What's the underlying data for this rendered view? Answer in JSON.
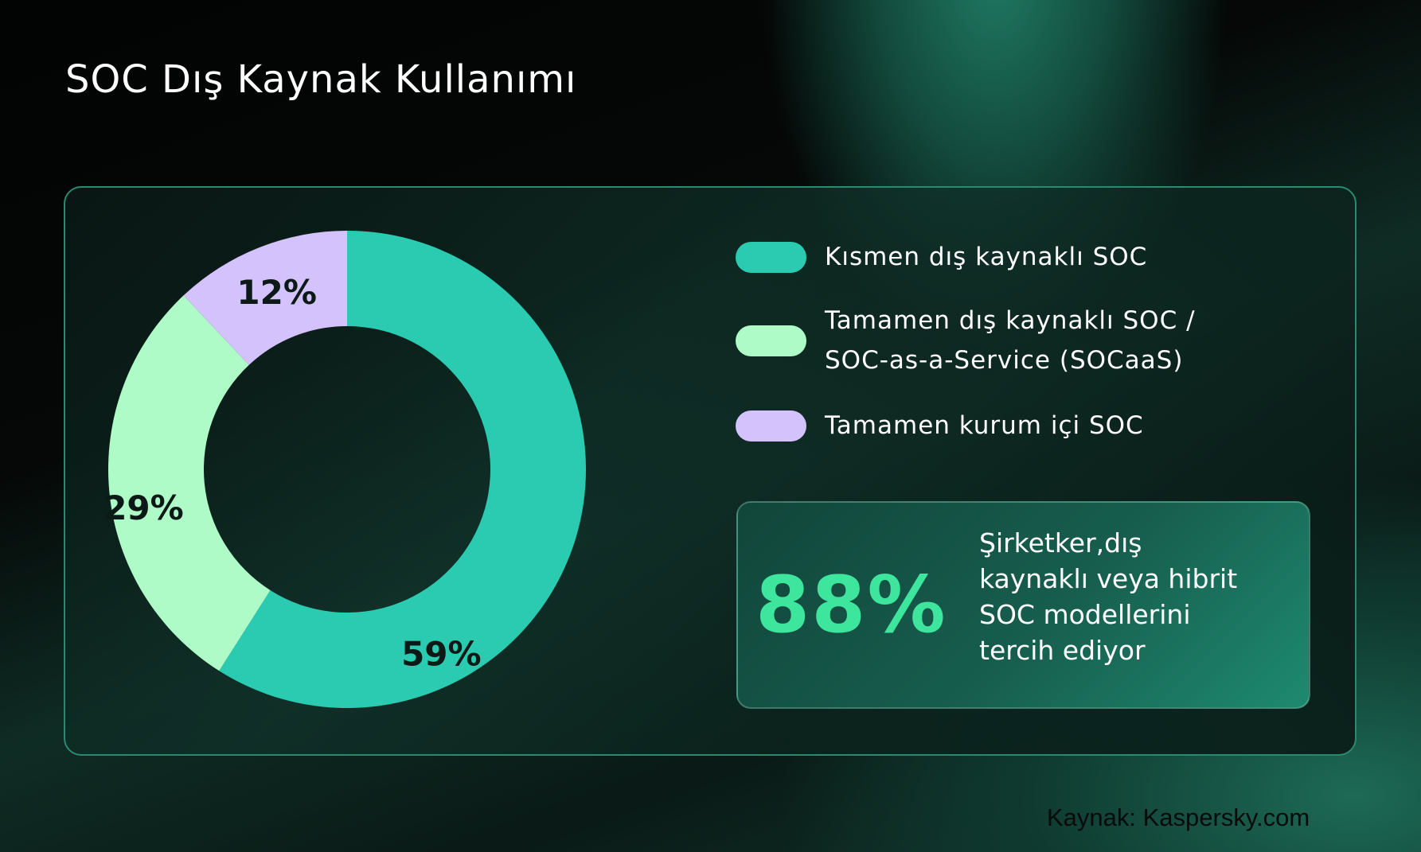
{
  "title": "SOC Dış Kaynak Kullanımı",
  "chart_data": {
    "type": "pie",
    "donut": true,
    "categories": [
      "Kısmen dış kaynaklı SOC",
      "Tamamen dış kaynaklı SOC / SOC-as-a-Service (SOCaaS)",
      "Tamamen kurum içi SOC"
    ],
    "values": [
      59,
      29,
      12
    ],
    "labels": [
      "59%",
      "29%",
      "12%"
    ],
    "colors": [
      "#2acbb0",
      "#aefbc8",
      "#d4c2fc"
    ],
    "legend_position": "right"
  },
  "legend": [
    {
      "label_lines": [
        "Kısmen dış kaynaklı SOC"
      ],
      "color": "#2acbb0"
    },
    {
      "label_lines": [
        "Tamamen dış kaynaklı SOC /",
        "SOC-as-a-Service (SOCaaS)"
      ],
      "color": "#aefbc8"
    },
    {
      "label_lines": [
        "Tamamen kurum içi SOC"
      ],
      "color": "#d4c2fc"
    }
  ],
  "stat": {
    "value": "88%",
    "lines": [
      "Şirketker,dış",
      "kaynaklı veya hibrit",
      "SOC modellerini",
      "tercih ediyor"
    ],
    "color": "#3ee59d"
  },
  "source": "Kaynak: Kaspersky.com"
}
